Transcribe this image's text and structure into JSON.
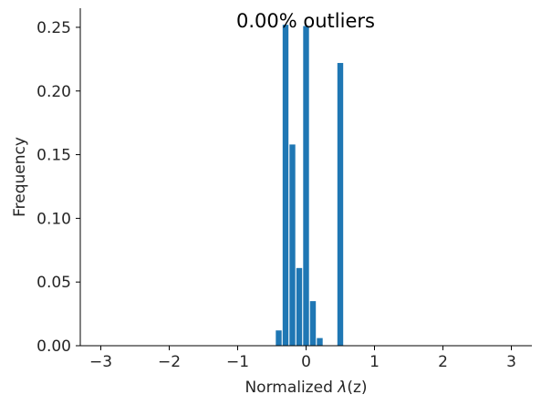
{
  "chart_data": {
    "type": "bar",
    "title": "0.00% outliers",
    "xlabel_prefix": "Normalized ",
    "xlabel_symbol": "λ",
    "xlabel_suffix": "(z)",
    "ylabel": "Frequency",
    "xlim": [
      -3.3,
      3.3
    ],
    "ylim": [
      0,
      0.265
    ],
    "bar_width": 0.085,
    "color": "#1f77b4",
    "xticks": [
      -3,
      -2,
      -1,
      0,
      1,
      2,
      3
    ],
    "xtick_labels": [
      "−3",
      "−2",
      "−1",
      "0",
      "1",
      "2",
      "3"
    ],
    "yticks": [
      0,
      0.05,
      0.1,
      0.15,
      0.2,
      0.25
    ],
    "ytick_labels": [
      "0.00",
      "0.05",
      "0.10",
      "0.15",
      "0.20",
      "0.25"
    ],
    "grid": false,
    "bars": [
      {
        "x": -0.4,
        "value": 0.012
      },
      {
        "x": -0.3,
        "value": 0.252
      },
      {
        "x": -0.2,
        "value": 0.158
      },
      {
        "x": -0.1,
        "value": 0.061
      },
      {
        "x": 0.0,
        "value": 0.251
      },
      {
        "x": 0.1,
        "value": 0.035
      },
      {
        "x": 0.2,
        "value": 0.006
      },
      {
        "x": 0.5,
        "value": 0.222
      }
    ]
  }
}
